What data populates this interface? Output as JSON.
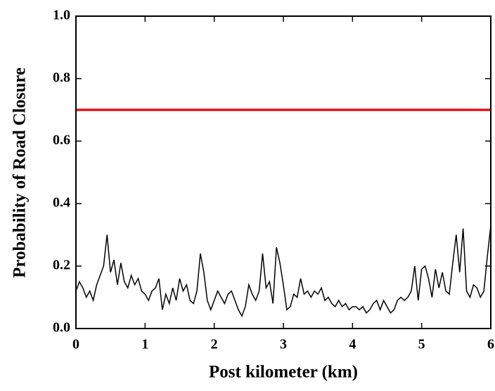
{
  "chart_data": {
    "type": "line",
    "xlabel": "Post kilometer (km)",
    "ylabel": "Probability of Road Closure",
    "xlim": [
      0,
      6
    ],
    "ylim": [
      0,
      1
    ],
    "xticks": [
      0,
      1,
      2,
      3,
      4,
      5,
      6
    ],
    "yticks": [
      {
        "value": 0,
        "label": "0.0"
      },
      0.2,
      0.4,
      0.6,
      0.8,
      {
        "value": 1,
        "label": "1.0"
      }
    ],
    "x": [
      0,
      0.05,
      0.1,
      0.15,
      0.2,
      0.25,
      0.3,
      0.35,
      0.4,
      0.45,
      0.5,
      0.55,
      0.6,
      0.65,
      0.7,
      0.75,
      0.8,
      0.85,
      0.9,
      0.95,
      1,
      1.05,
      1.1,
      1.15,
      1.2,
      1.25,
      1.3,
      1.35,
      1.4,
      1.45,
      1.5,
      1.55,
      1.6,
      1.65,
      1.7,
      1.75,
      1.8,
      1.85,
      1.9,
      1.95,
      2,
      2.05,
      2.1,
      2.15,
      2.2,
      2.25,
      2.3,
      2.35,
      2.4,
      2.45,
      2.5,
      2.55,
      2.6,
      2.65,
      2.7,
      2.75,
      2.8,
      2.85,
      2.9,
      2.95,
      3,
      3.05,
      3.1,
      3.15,
      3.2,
      3.25,
      3.3,
      3.35,
      3.4,
      3.45,
      3.5,
      3.55,
      3.6,
      3.65,
      3.7,
      3.75,
      3.8,
      3.85,
      3.9,
      3.95,
      4,
      4.05,
      4.1,
      4.15,
      4.2,
      4.25,
      4.3,
      4.35,
      4.4,
      4.45,
      4.5,
      4.55,
      4.6,
      4.65,
      4.7,
      4.75,
      4.8,
      4.85,
      4.9,
      4.95,
      5,
      5.05,
      5.1,
      5.15,
      5.2,
      5.25,
      5.3,
      5.35,
      5.4,
      5.45,
      5.5,
      5.55,
      5.6,
      5.65,
      5.7,
      5.75,
      5.8,
      5.85,
      5.9,
      5.95,
      6
    ],
    "series": [
      {
        "color": "#000000",
        "values": [
          0.12,
          0.15,
          0.13,
          0.1,
          0.12,
          0.09,
          0.14,
          0.17,
          0.2,
          0.3,
          0.18,
          0.22,
          0.14,
          0.21,
          0.15,
          0.13,
          0.17,
          0.14,
          0.16,
          0.12,
          0.11,
          0.09,
          0.12,
          0.13,
          0.16,
          0.06,
          0.11,
          0.08,
          0.13,
          0.09,
          0.16,
          0.12,
          0.14,
          0.09,
          0.08,
          0.12,
          0.24,
          0.18,
          0.09,
          0.06,
          0.09,
          0.12,
          0.1,
          0.08,
          0.11,
          0.12,
          0.09,
          0.06,
          0.04,
          0.07,
          0.14,
          0.11,
          0.09,
          0.12,
          0.24,
          0.13,
          0.15,
          0.08,
          0.26,
          0.21,
          0.14,
          0.06,
          0.07,
          0.11,
          0.1,
          0.16,
          0.11,
          0.12,
          0.1,
          0.12,
          0.11,
          0.13,
          0.09,
          0.1,
          0.08,
          0.07,
          0.09,
          0.07,
          0.08,
          0.06,
          0.07,
          0.07,
          0.06,
          0.07,
          0.05,
          0.06,
          0.08,
          0.09,
          0.06,
          0.09,
          0.07,
          0.05,
          0.06,
          0.09,
          0.1,
          0.09,
          0.1,
          0.12,
          0.2,
          0.09,
          0.19,
          0.2,
          0.16,
          0.1,
          0.19,
          0.13,
          0.18,
          0.12,
          0.11,
          0.21,
          0.3,
          0.18,
          0.32,
          0.12,
          0.1,
          0.14,
          0.13,
          0.1,
          0.12,
          0.23,
          0.33
        ]
      }
    ],
    "reference_line": {
      "value": 0.7,
      "color": "#e8141a"
    }
  }
}
